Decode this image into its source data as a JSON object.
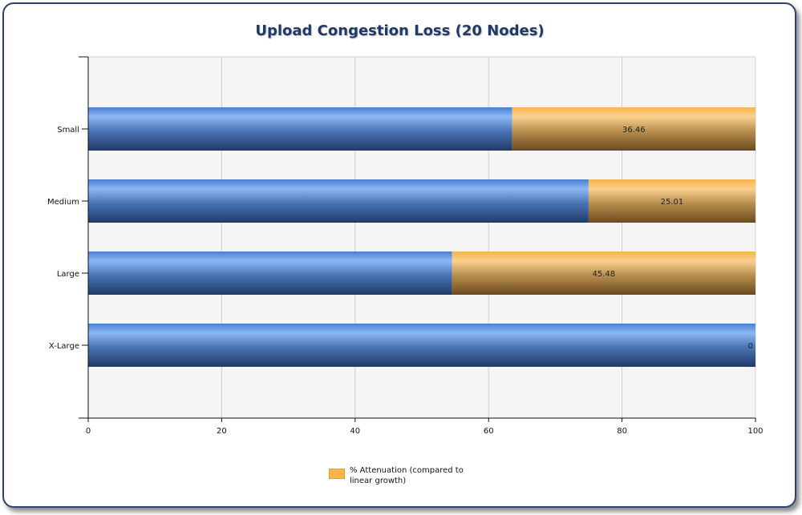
{
  "chart_data": {
    "type": "bar",
    "orientation": "horizontal",
    "stacked": true,
    "title": "Upload Congestion Loss (20 Nodes)",
    "categories": [
      "Small",
      "Medium",
      "Large",
      "X-Large"
    ],
    "series": [
      {
        "values": [
          63.54,
          74.99,
          54.52,
          100
        ],
        "color": "#4f86d8"
      },
      {
        "name": "% Attenuation (compared to linear growth)",
        "values": [
          36.46,
          25.01,
          45.48,
          0
        ],
        "color": "#f6b44a"
      }
    ],
    "data_labels": [
      "36.46",
      "25.01",
      "45.48",
      "0"
    ],
    "xlim": [
      0,
      100
    ],
    "xticks": [
      "0",
      "20",
      "40",
      "60",
      "80",
      "100"
    ],
    "grid": true,
    "legend_position": "bottom-center"
  },
  "legend": {
    "label": "% Attenuation (compared to linear growth)"
  }
}
